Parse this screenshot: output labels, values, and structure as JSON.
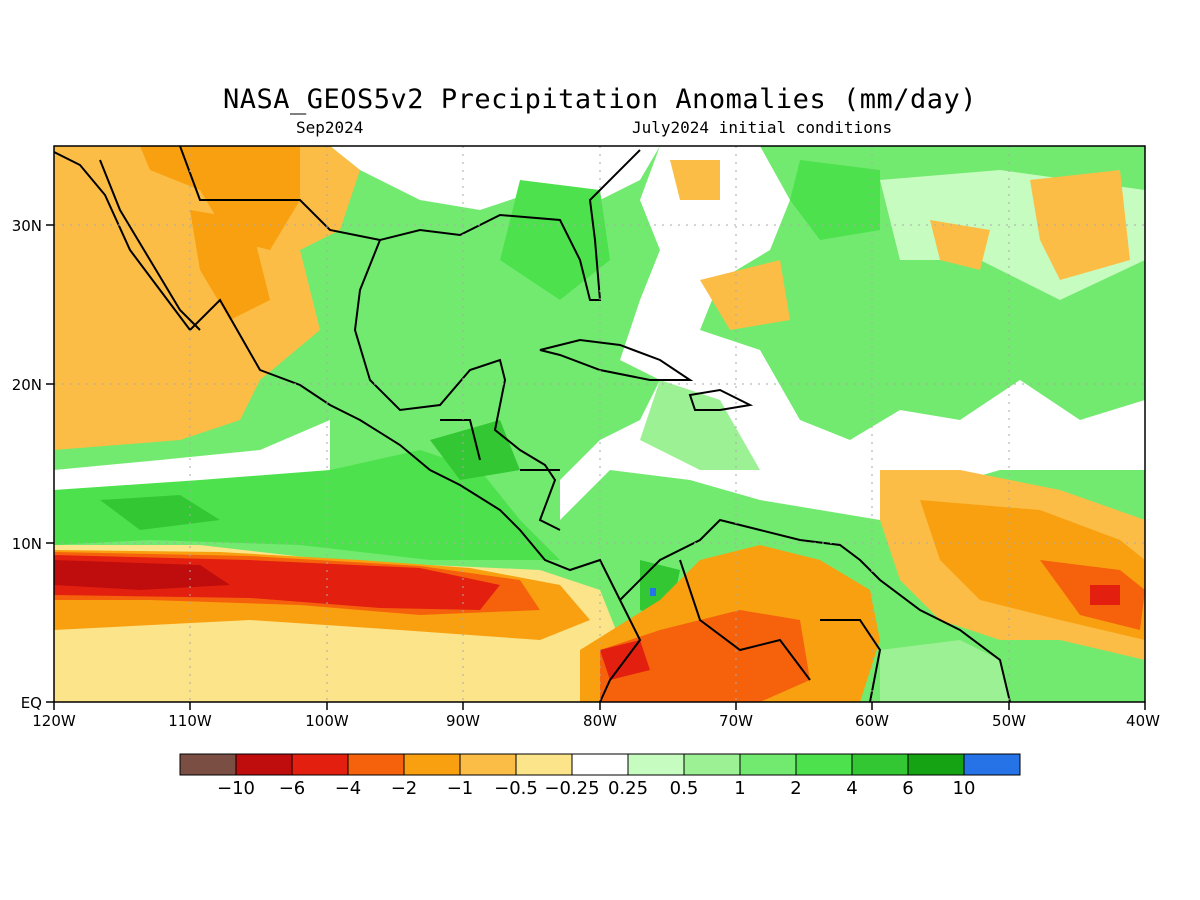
{
  "title": "NASA_GEOS5v2 Precipitation Anomalies (mm/day)",
  "subtitle_left": "Sep2024",
  "subtitle_right": "July2024 initial conditions",
  "lon_ticks": [
    "120W",
    "110W",
    "100W",
    "90W",
    "80W",
    "70W",
    "60W",
    "50W",
    "40W"
  ],
  "lat_ticks": [
    "EQ",
    "10N",
    "20N",
    "30N"
  ],
  "colorbar": {
    "labels": [
      "−10",
      "−6",
      "−4",
      "−2",
      "−1",
      "−0.5",
      "−0.25",
      "0.25",
      "0.5",
      "1",
      "2",
      "4",
      "6",
      "10"
    ],
    "colors": [
      "#7a4e43",
      "#bf0d0d",
      "#e3200f",
      "#f6620c",
      "#f8a010",
      "#fbbd45",
      "#fce48a",
      "#ffffff",
      "#c6fcbf",
      "#9cf194",
      "#72ea6f",
      "#4de24d",
      "#33c733",
      "#15a314",
      "#2673e8"
    ]
  },
  "chart_data": {
    "type": "map",
    "title": "NASA_GEOS5v2 Precipitation Anomalies (mm/day)",
    "valid_month": "Sep2024",
    "initial_conditions": "July2024 initial conditions",
    "lon_range": [
      -120,
      -40
    ],
    "lat_range": [
      0,
      35
    ],
    "units": "mm/day"
  }
}
